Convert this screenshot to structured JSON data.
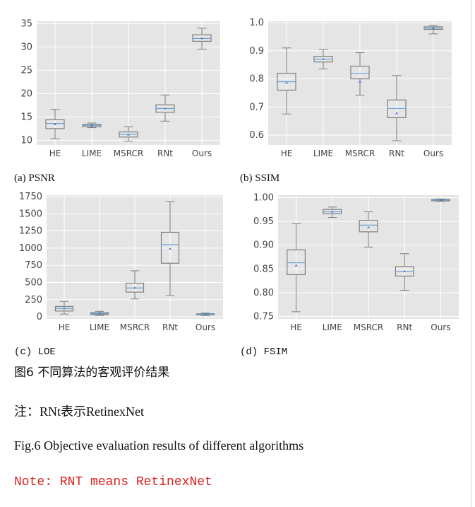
{
  "chart_data": [
    {
      "type": "box",
      "caption": "(a) PSNR",
      "categories": [
        "HE",
        "LIME",
        "MSRCR",
        "RNt",
        "Ours"
      ],
      "ylim": [
        9,
        35.5
      ],
      "yticks": [
        "10",
        "15",
        "20",
        "25",
        "30",
        "35"
      ],
      "ytick_values": [
        10,
        15,
        20,
        25,
        30,
        35
      ],
      "boxes": [
        {
          "whislo": 10.3,
          "q1": 12.5,
          "med": 13.6,
          "q3": 14.4,
          "whishi": 16.6,
          "mean": 13.4
        },
        {
          "whislo": 12.7,
          "q1": 12.9,
          "med": 13.2,
          "q3": 13.4,
          "whishi": 13.7,
          "mean": 13.1
        },
        {
          "whislo": 9.8,
          "q1": 10.7,
          "med": 11.3,
          "q3": 11.8,
          "whishi": 12.9,
          "mean": 11.2
        },
        {
          "whislo": 14.1,
          "q1": 16.0,
          "med": 16.8,
          "q3": 17.6,
          "whishi": 19.7,
          "mean": 16.8
        },
        {
          "whislo": 29.5,
          "q1": 31.2,
          "med": 31.8,
          "q3": 32.6,
          "whishi": 34.0,
          "mean": 31.8
        }
      ],
      "grid": true
    },
    {
      "type": "box",
      "caption": "(b) SSIM",
      "categories": [
        "HE",
        "LIME",
        "MSRCR",
        "RNt",
        "Ours"
      ],
      "ylim": [
        0.565,
        1.005
      ],
      "yticks": [
        "0.6",
        "0.7",
        "0.8",
        "0.9",
        "1.0"
      ],
      "ytick_values": [
        0.6,
        0.7,
        0.8,
        0.9,
        1.0
      ],
      "boxes": [
        {
          "whislo": 0.675,
          "q1": 0.76,
          "med": 0.79,
          "q3": 0.82,
          "whishi": 0.91,
          "mean": 0.785
        },
        {
          "whislo": 0.835,
          "q1": 0.86,
          "med": 0.87,
          "q3": 0.88,
          "whishi": 0.905,
          "mean": 0.87
        },
        {
          "whislo": 0.742,
          "q1": 0.8,
          "med": 0.82,
          "q3": 0.845,
          "whishi": 0.893,
          "mean": 0.79
        },
        {
          "whislo": 0.58,
          "q1": 0.662,
          "med": 0.695,
          "q3": 0.725,
          "whishi": 0.812,
          "mean": 0.677
        },
        {
          "whislo": 0.96,
          "q1": 0.976,
          "med": 0.98,
          "q3": 0.985,
          "whishi": 0.99,
          "mean": 0.98
        }
      ],
      "grid": true
    },
    {
      "type": "box",
      "caption": "(c) LOE",
      "categories": [
        "HE",
        "LIME",
        "MSRCR",
        "RNt",
        "Ours"
      ],
      "ylim": [
        -30,
        1770
      ],
      "yticks": [
        "0",
        "250",
        "500",
        "750",
        "1000",
        "1250",
        "1500",
        "1750"
      ],
      "ytick_values": [
        0,
        250,
        500,
        750,
        1000,
        1250,
        1500,
        1750
      ],
      "boxes": [
        {
          "whislo": 40,
          "q1": 85,
          "med": 120,
          "q3": 150,
          "whishi": 225,
          "mean": 120
        },
        {
          "whislo": 20,
          "q1": 35,
          "med": 48,
          "q3": 62,
          "whishi": 80,
          "mean": 48
        },
        {
          "whislo": 260,
          "q1": 360,
          "med": 420,
          "q3": 490,
          "whishi": 670,
          "mean": 420
        },
        {
          "whislo": 310,
          "q1": 780,
          "med": 1050,
          "q3": 1230,
          "whishi": 1680,
          "mean": 990
        },
        {
          "whislo": 20,
          "q1": 30,
          "med": 38,
          "q3": 45,
          "whishi": 55,
          "mean": 38
        }
      ],
      "grid": true
    },
    {
      "type": "box",
      "caption": "(d) FSIM",
      "categories": [
        "HE",
        "LIME",
        "MSRCR",
        "RNt",
        "Ours"
      ],
      "ylim": [
        0.745,
        1.005
      ],
      "yticks": [
        "0.75",
        "0.80",
        "0.85",
        "0.90",
        "0.95",
        "1.00"
      ],
      "ytick_values": [
        0.75,
        0.8,
        0.85,
        0.9,
        0.95,
        1.0
      ],
      "boxes": [
        {
          "whislo": 0.76,
          "q1": 0.838,
          "med": 0.863,
          "q3": 0.89,
          "whishi": 0.945,
          "mean": 0.857
        },
        {
          "whislo": 0.958,
          "q1": 0.966,
          "med": 0.97,
          "q3": 0.975,
          "whishi": 0.98,
          "mean": 0.97
        },
        {
          "whislo": 0.896,
          "q1": 0.928,
          "med": 0.942,
          "q3": 0.952,
          "whishi": 0.97,
          "mean": 0.937
        },
        {
          "whislo": 0.805,
          "q1": 0.835,
          "med": 0.845,
          "q3": 0.855,
          "whishi": 0.882,
          "mean": 0.845
        },
        {
          "whislo": 0.992,
          "q1": 0.993,
          "med": 0.995,
          "q3": 0.996,
          "whishi": 0.997,
          "mean": 0.995
        }
      ],
      "grid": true
    }
  ],
  "text": {
    "fig_cn": "图6 不同算法的客观评价结果",
    "note_cn": "注：RNt表示RetinexNet",
    "fig_en": "Fig.6  Objective evaluation results of different algorithms",
    "note_en": "Note: RNT means RetinexNet"
  },
  "colors": {
    "plot_bg": "#e5e5e5",
    "grid": "#ffffff",
    "box_edge": "#7f7f7f",
    "median": "#6a9fd0",
    "mean": "#4a7fc0",
    "note_red": "#e11f1f"
  }
}
